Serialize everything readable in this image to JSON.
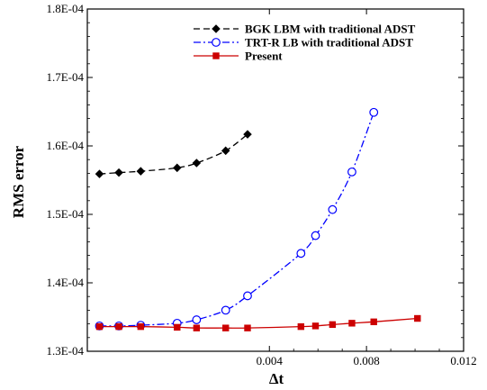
{
  "chart_data": {
    "type": "line",
    "xlabel": "Δt",
    "ylabel": "RMS error",
    "xlim": [
      -0.0035,
      0.012
    ],
    "ylim": [
      0.00013,
      0.00018
    ],
    "x_log": false,
    "y_log": false,
    "grid": false,
    "legend_position": "top-right",
    "x_ticks": [
      {
        "value": 0.004,
        "label": "0.004"
      },
      {
        "value": 0.008,
        "label": "0.008"
      },
      {
        "value": 0.012,
        "label": "0.012"
      }
    ],
    "y_ticks": [
      {
        "value": 0.00013,
        "label": "1.3E-04"
      },
      {
        "value": 0.00014,
        "label": "1.4E-04"
      },
      {
        "value": 0.00015,
        "label": "1.5E-04"
      },
      {
        "value": 0.00016,
        "label": "1.6E-04"
      },
      {
        "value": 0.00017,
        "label": "1.7E-04"
      },
      {
        "value": 0.00018,
        "label": "1.8E-04"
      }
    ],
    "series": [
      {
        "name": "BGK LBM with traditional ADST",
        "color": "#000000",
        "line_style": "dashed",
        "marker": "diamond",
        "x": [
          -0.003,
          -0.0022,
          -0.0013,
          0.0002,
          0.001,
          0.0022,
          0.0031
        ],
        "y": [
          0.0001559,
          0.0001561,
          0.0001563,
          0.0001568,
          0.0001575,
          0.0001593,
          0.0001617
        ]
      },
      {
        "name": "TRT-R LB with traditional ADST",
        "color": "#0000ff",
        "line_style": "dash-dot",
        "marker": "open-circle",
        "x": [
          -0.003,
          -0.0022,
          -0.0013,
          0.0002,
          0.001,
          0.0022,
          0.0031,
          0.0053,
          0.0059,
          0.0066,
          0.0074,
          0.0083
        ],
        "y": [
          0.0001337,
          0.0001337,
          0.0001338,
          0.0001341,
          0.0001346,
          0.000136,
          0.0001381,
          0.0001443,
          0.0001469,
          0.0001507,
          0.0001562,
          0.0001649
        ]
      },
      {
        "name": "Present",
        "color": "#cc0000",
        "line_style": "solid",
        "marker": "filled-square",
        "x": [
          -0.003,
          -0.0022,
          -0.0013,
          0.0002,
          0.001,
          0.0022,
          0.0031,
          0.0053,
          0.0059,
          0.0066,
          0.0074,
          0.0083,
          0.0101
        ],
        "y": [
          0.0001336,
          0.0001336,
          0.0001336,
          0.0001335,
          0.0001334,
          0.0001334,
          0.0001334,
          0.0001336,
          0.0001337,
          0.0001339,
          0.0001341,
          0.0001343,
          0.0001348
        ]
      }
    ]
  }
}
